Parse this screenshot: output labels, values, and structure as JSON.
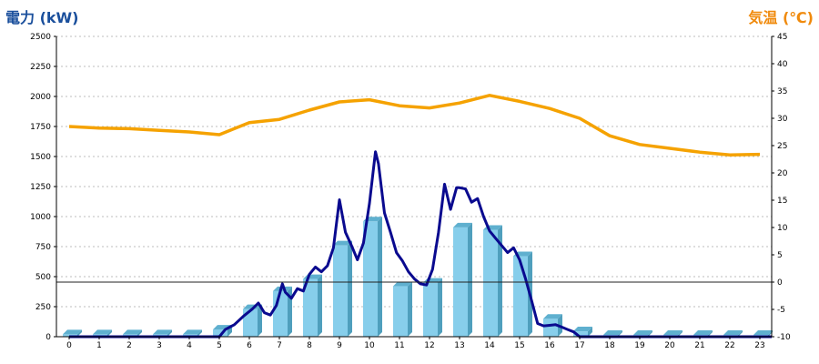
{
  "colors": {
    "left_title": "#1a4f9c",
    "right_title": "#f08a0c",
    "bar_front": "#87ceeb",
    "bar_side": "#4f9fbd",
    "bar_top": "#5fb0cf",
    "power_line": "#0a0a8f",
    "temp_line": "#f5a200",
    "grid": "#bdbdbd",
    "axis": "#000000"
  },
  "chart_data": {
    "type": "bar",
    "left_axis_title": "電力 (kW)",
    "right_axis_title": "気温 (℃)",
    "grid": true,
    "left_ylim": [
      0,
      2500
    ],
    "left_yticks": [
      0,
      250,
      500,
      750,
      1000,
      1250,
      1500,
      1750,
      2000,
      2250,
      2500
    ],
    "right_ylim": [
      -10,
      45
    ],
    "right_yticks": [
      -10,
      -5,
      0,
      5,
      10,
      15,
      20,
      25,
      30,
      35,
      40,
      45
    ],
    "right_zero_line": 0,
    "categories": [
      "0",
      "1",
      "2",
      "3",
      "4",
      "5",
      "6",
      "7",
      "8",
      "9",
      "10",
      "11",
      "12",
      "13",
      "14",
      "15",
      "16",
      "17",
      "18",
      "19",
      "20",
      "21",
      "22",
      "23"
    ],
    "series": [
      {
        "kind": "bar",
        "axis": "left",
        "values": [
          20,
          20,
          20,
          20,
          20,
          60,
          230,
          380,
          480,
          760,
          960,
          420,
          450,
          910,
          890,
          670,
          150,
          45,
          15,
          15,
          15,
          15,
          15,
          15
        ]
      },
      {
        "kind": "line",
        "axis": "left",
        "points": [
          [
            0,
            0
          ],
          [
            5,
            0
          ],
          [
            5.2,
            60
          ],
          [
            5.5,
            100
          ],
          [
            5.8,
            170
          ],
          [
            6.1,
            230
          ],
          [
            6.3,
            280
          ],
          [
            6.5,
            200
          ],
          [
            6.7,
            180
          ],
          [
            6.9,
            260
          ],
          [
            7.1,
            440
          ],
          [
            7.2,
            370
          ],
          [
            7.4,
            320
          ],
          [
            7.6,
            400
          ],
          [
            7.8,
            380
          ],
          [
            8.0,
            520
          ],
          [
            8.2,
            580
          ],
          [
            8.4,
            540
          ],
          [
            8.6,
            590
          ],
          [
            8.8,
            740
          ],
          [
            9.0,
            1140
          ],
          [
            9.2,
            870
          ],
          [
            9.4,
            760
          ],
          [
            9.6,
            640
          ],
          [
            9.8,
            780
          ],
          [
            10.0,
            1110
          ],
          [
            10.2,
            1540
          ],
          [
            10.3,
            1440
          ],
          [
            10.5,
            1030
          ],
          [
            10.7,
            870
          ],
          [
            10.9,
            700
          ],
          [
            11.1,
            630
          ],
          [
            11.3,
            540
          ],
          [
            11.5,
            480
          ],
          [
            11.7,
            440
          ],
          [
            11.9,
            430
          ],
          [
            12.1,
            560
          ],
          [
            12.3,
            870
          ],
          [
            12.5,
            1270
          ],
          [
            12.7,
            1060
          ],
          [
            12.9,
            1240
          ],
          [
            13.0,
            1240
          ],
          [
            13.2,
            1230
          ],
          [
            13.4,
            1120
          ],
          [
            13.6,
            1150
          ],
          [
            13.8,
            1000
          ],
          [
            14.0,
            880
          ],
          [
            14.2,
            820
          ],
          [
            14.4,
            760
          ],
          [
            14.6,
            700
          ],
          [
            14.8,
            740
          ],
          [
            15.0,
            640
          ],
          [
            15.2,
            480
          ],
          [
            15.4,
            300
          ],
          [
            15.6,
            110
          ],
          [
            15.8,
            90
          ],
          [
            16.0,
            95
          ],
          [
            16.2,
            100
          ],
          [
            16.4,
            80
          ],
          [
            16.6,
            60
          ],
          [
            16.8,
            40
          ],
          [
            17.0,
            0
          ],
          [
            23.4,
            0
          ]
        ]
      },
      {
        "kind": "line",
        "axis": "right",
        "points": [
          [
            0,
            28.5
          ],
          [
            1,
            28.2
          ],
          [
            2,
            28.1
          ],
          [
            3,
            27.8
          ],
          [
            4,
            27.5
          ],
          [
            5,
            27.0
          ],
          [
            6,
            29.2
          ],
          [
            7,
            29.8
          ],
          [
            8,
            31.5
          ],
          [
            9,
            33.0
          ],
          [
            10,
            33.4
          ],
          [
            11,
            32.3
          ],
          [
            12,
            31.9
          ],
          [
            13,
            32.8
          ],
          [
            14,
            34.2
          ],
          [
            15,
            33.1
          ],
          [
            16,
            31.8
          ],
          [
            17,
            30.0
          ],
          [
            18,
            26.8
          ],
          [
            19,
            25.2
          ],
          [
            20,
            24.5
          ],
          [
            21,
            23.8
          ],
          [
            22,
            23.3
          ],
          [
            23,
            23.4
          ]
        ]
      }
    ]
  }
}
